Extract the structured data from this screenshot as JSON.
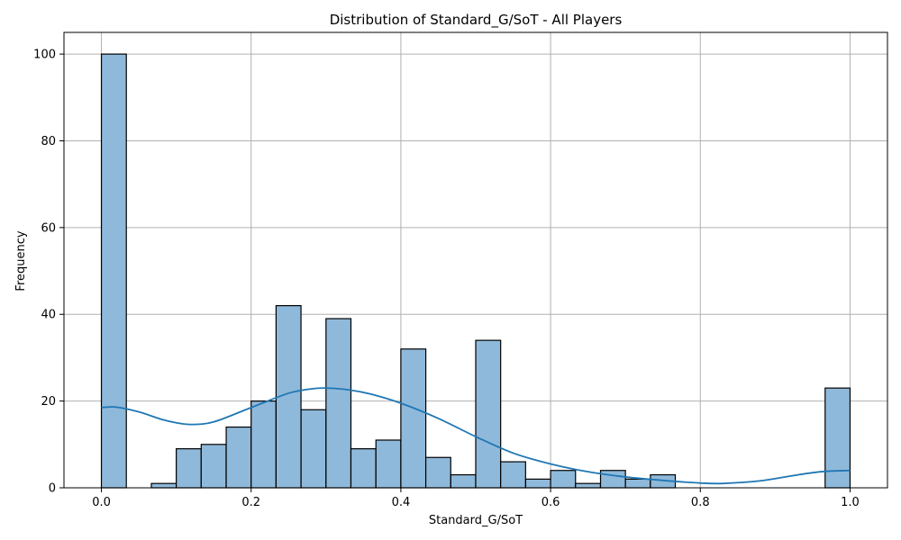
{
  "chart_data": {
    "type": "bar",
    "title": "Distribution of Standard_G/SoT - All Players",
    "xlabel": "Standard_G/SoT",
    "ylabel": "Frequency",
    "xlim": [
      -0.05,
      1.05
    ],
    "ylim": [
      0,
      105
    ],
    "grid": true,
    "bin_width": 0.0333,
    "bins": [
      {
        "x0": 0.0,
        "count": 100
      },
      {
        "x0": 0.0333,
        "count": 0
      },
      {
        "x0": 0.0667,
        "count": 1
      },
      {
        "x0": 0.1,
        "count": 9
      },
      {
        "x0": 0.1333,
        "count": 10
      },
      {
        "x0": 0.1667,
        "count": 14
      },
      {
        "x0": 0.2,
        "count": 20
      },
      {
        "x0": 0.2333,
        "count": 42
      },
      {
        "x0": 0.2667,
        "count": 18
      },
      {
        "x0": 0.3,
        "count": 39
      },
      {
        "x0": 0.3333,
        "count": 9
      },
      {
        "x0": 0.3667,
        "count": 11
      },
      {
        "x0": 0.4,
        "count": 32
      },
      {
        "x0": 0.4333,
        "count": 7
      },
      {
        "x0": 0.4667,
        "count": 3
      },
      {
        "x0": 0.5,
        "count": 34
      },
      {
        "x0": 0.5333,
        "count": 6
      },
      {
        "x0": 0.5667,
        "count": 2
      },
      {
        "x0": 0.6,
        "count": 4
      },
      {
        "x0": 0.6333,
        "count": 1
      },
      {
        "x0": 0.6667,
        "count": 4
      },
      {
        "x0": 0.7,
        "count": 2
      },
      {
        "x0": 0.7333,
        "count": 3
      },
      {
        "x0": 0.7667,
        "count": 0
      },
      {
        "x0": 0.8,
        "count": 0
      },
      {
        "x0": 0.8333,
        "count": 0
      },
      {
        "x0": 0.8667,
        "count": 0
      },
      {
        "x0": 0.9,
        "count": 0
      },
      {
        "x0": 0.9333,
        "count": 0
      },
      {
        "x0": 0.9667,
        "count": 23
      }
    ],
    "kde": {
      "x": [
        0.0,
        0.02,
        0.05,
        0.08,
        0.1,
        0.12,
        0.15,
        0.2,
        0.25,
        0.28,
        0.3,
        0.33,
        0.36,
        0.4,
        0.45,
        0.5,
        0.55,
        0.6,
        0.65,
        0.7,
        0.75,
        0.8,
        0.83,
        0.88,
        0.92,
        0.96,
        1.0
      ],
      "y": [
        18.5,
        18.6,
        17.5,
        15.8,
        15.0,
        14.6,
        15.2,
        18.5,
        21.8,
        22.8,
        23.0,
        22.6,
        21.6,
        19.5,
        16.0,
        11.8,
        8.0,
        5.5,
        3.7,
        2.5,
        1.7,
        1.1,
        1.0,
        1.6,
        2.7,
        3.7,
        4.0
      ]
    },
    "xticks": [
      "0.0",
      "0.2",
      "0.4",
      "0.6",
      "0.8",
      "1.0"
    ],
    "xtick_values": [
      0.0,
      0.2,
      0.4,
      0.6,
      0.8,
      1.0
    ],
    "yticks": [
      "0",
      "20",
      "40",
      "60",
      "80",
      "100"
    ],
    "ytick_values": [
      0,
      20,
      40,
      60,
      80,
      100
    ],
    "colors": {
      "bar_fill": "#8fb9da",
      "bar_edge": "#000000",
      "kde_line": "#1f77b4",
      "grid": "#b0b0b0"
    }
  }
}
